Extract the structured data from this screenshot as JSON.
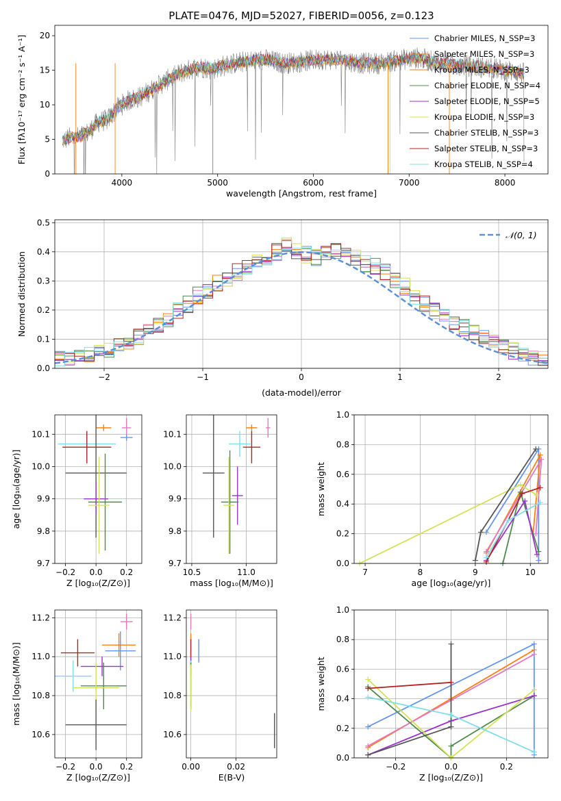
{
  "chart_data": [
    {
      "id": "spectrum",
      "type": "line",
      "title": "PLATE=0476, MJD=52027, FIBERID=0056, z=0.123",
      "xlabel": "wavelength [Angstrom, rest frame]",
      "ylabel": "Flux [fλ10⁻¹⁷ erg cm⁻² s⁻¹ A⁻¹]",
      "xlim": [
        3300,
        8450
      ],
      "ylim": [
        0,
        21.5
      ],
      "xticks": [
        4000,
        5000,
        6000,
        7000,
        8000
      ],
      "yticks": [
        0,
        5,
        10,
        15,
        20
      ],
      "legend_position": "upper-right",
      "data_envelope": {
        "x": [
          3380,
          3450,
          3550,
          3650,
          3750,
          3850,
          3950,
          4050,
          4200,
          4350,
          4500,
          4650,
          4800,
          4950,
          5100,
          5300,
          5500,
          5700,
          5900,
          6100,
          6300,
          6500,
          6700,
          6900,
          7100,
          7300,
          7500,
          7700,
          7900,
          8100,
          8200
        ],
        "y": [
          4.8,
          5.2,
          5.3,
          6.0,
          7.5,
          7.8,
          9.5,
          10.5,
          11.2,
          12.5,
          13.8,
          14.8,
          15.5,
          15.2,
          15.8,
          16.3,
          16.5,
          16.0,
          16.3,
          16.6,
          16.5,
          16.0,
          16.0,
          16.5,
          16.8,
          16.0,
          15.8,
          15.5,
          15.2,
          14.8,
          14.5
        ]
      },
      "series": [
        {
          "name": "Chabrier MILES, N_SSP=3",
          "color": "#6495ed"
        },
        {
          "name": "Salpeter MILES, N_SSP=3",
          "color": "#ff7f0e"
        },
        {
          "name": "Kroupa MILES, N_SSP=3",
          "color": "#e67e22"
        },
        {
          "name": "Chabrier ELODIE, N_SSP=4",
          "color": "#4e8a4e"
        },
        {
          "name": "Salpeter ELODIE, N_SSP=5",
          "color": "#9932cc"
        },
        {
          "name": "Kroupa ELODIE, N_SSP=3",
          "color": "#d4e157"
        },
        {
          "name": "Chabrier STELIB, N_SSP=3",
          "color": "#555555"
        },
        {
          "name": "Salpeter STELIB, N_SSP=3",
          "color": "#b22222"
        },
        {
          "name": "Kroupa STELIB, N_SSP=4",
          "color": "#80deea"
        }
      ]
    },
    {
      "id": "residuals",
      "type": "line",
      "xlabel": "(data-model)/error",
      "ylabel": "Normed distribution",
      "xlim": [
        -2.5,
        2.5
      ],
      "ylim": [
        0,
        0.51
      ],
      "xticks": [
        -2,
        -1,
        0,
        1,
        2
      ],
      "yticks": [
        0.0,
        0.1,
        0.2,
        0.3,
        0.4,
        0.5
      ],
      "grid": true,
      "legend": [
        "𝒩(0, 1)"
      ],
      "legend_position": "upper-right",
      "histogram": {
        "bin_start": -2.5,
        "bin_width": 0.1,
        "envelope": [
          0.03,
          0.035,
          0.04,
          0.045,
          0.055,
          0.065,
          0.08,
          0.095,
          0.11,
          0.13,
          0.15,
          0.17,
          0.2,
          0.22,
          0.25,
          0.27,
          0.29,
          0.31,
          0.33,
          0.35,
          0.37,
          0.38,
          0.4,
          0.42,
          0.4,
          0.39,
          0.38,
          0.39,
          0.4,
          0.41,
          0.38,
          0.36,
          0.35,
          0.33,
          0.3,
          0.28,
          0.25,
          0.22,
          0.2,
          0.18,
          0.15,
          0.14,
          0.12,
          0.11,
          0.09,
          0.075,
          0.06,
          0.05,
          0.04,
          0.03
        ]
      },
      "series": [
        {
          "name": "𝒩(0, 1)",
          "type": "gaussian",
          "mean": 0,
          "sigma": 1,
          "color": "#5b8fd6"
        }
      ]
    },
    {
      "id": "age-vs-Z",
      "type": "scatter",
      "xlabel": "Z [log₁₀(Z/Z⊙)]",
      "ylabel": "age  [log₁₀(age/yr)]",
      "xlim": [
        -0.27,
        0.3
      ],
      "ylim": [
        9.7,
        10.16
      ],
      "xticks": [
        -0.2,
        0.0,
        0.2
      ],
      "yticks": [
        9.7,
        9.8,
        9.9,
        10.0,
        10.1
      ],
      "grid": true,
      "points": [
        {
          "x": 0.05,
          "y": 10.12,
          "xerr": 0.05,
          "yerr": 0.01,
          "color": "#ff7f0e"
        },
        {
          "x": 0.2,
          "y": 10.12,
          "xerr": 0.03,
          "yerr": 0.03,
          "color": "#e377c2"
        },
        {
          "x": 0.2,
          "y": 10.09,
          "xerr": 0.04,
          "yerr": 0.01,
          "color": "#6495ed"
        },
        {
          "x": -0.06,
          "y": 10.07,
          "xerr": 0.19,
          "yerr": 0.04,
          "color": "#80deea"
        },
        {
          "x": -0.06,
          "y": 10.06,
          "xerr": 0.16,
          "yerr": 0.05,
          "color": "#b22222"
        },
        {
          "x": 0.0,
          "y": 9.98,
          "xerr": 0.2,
          "yerr": 0.2,
          "color": "#555555"
        },
        {
          "x": 0.0,
          "y": 9.9,
          "xerr": 0.08,
          "yerr": 0.05,
          "color": "#9932cc"
        },
        {
          "x": 0.06,
          "y": 9.89,
          "xerr": 0.11,
          "yerr": 0.15,
          "color": "#4e8a4e"
        },
        {
          "x": 0.02,
          "y": 9.88,
          "xerr": 0.07,
          "yerr": 0.15,
          "color": "#d4e157"
        }
      ]
    },
    {
      "id": "age-vs-mass",
      "type": "scatter",
      "xlabel": "mass [log₁₀(M/M⊙)]",
      "ylabel": "",
      "xlim": [
        10.45,
        11.28
      ],
      "ylim": [
        9.7,
        10.16
      ],
      "xticks": [
        10.5,
        11.0
      ],
      "yticks": [
        9.7,
        9.8,
        9.9,
        10.0,
        10.1
      ],
      "grid": true,
      "points": [
        {
          "x": 11.05,
          "y": 10.12,
          "xerr": 0.05,
          "yerr": 0.01,
          "color": "#ff7f0e"
        },
        {
          "x": 11.2,
          "y": 10.12,
          "xerr": 0.02,
          "yerr": 0.03,
          "color": "#e377c2"
        },
        {
          "x": 10.94,
          "y": 10.07,
          "xerr": 0.1,
          "yerr": 0.04,
          "color": "#80deea"
        },
        {
          "x": 11.05,
          "y": 10.06,
          "xerr": 0.08,
          "yerr": 0.05,
          "color": "#b22222"
        },
        {
          "x": 10.7,
          "y": 9.98,
          "xerr": 0.1,
          "yerr": 0.2,
          "color": "#555555"
        },
        {
          "x": 10.92,
          "y": 9.91,
          "xerr": 0.05,
          "yerr": 0.09,
          "color": "#9932cc"
        },
        {
          "x": 10.85,
          "y": 9.89,
          "xerr": 0.08,
          "yerr": 0.16,
          "color": "#4e8a4e"
        },
        {
          "x": 10.84,
          "y": 9.88,
          "xerr": 0.05,
          "yerr": 0.15,
          "color": "#d4e157"
        }
      ]
    },
    {
      "id": "weight-vs-age",
      "type": "line",
      "xlabel": "age  [log₁₀(age/yr)]",
      "ylabel": "mass weight",
      "xlim": [
        6.8,
        10.32
      ],
      "ylim": [
        0.0,
        1.0
      ],
      "xticks": [
        7,
        8,
        9,
        10
      ],
      "yticks": [
        0.0,
        0.2,
        0.4,
        0.6,
        0.8,
        1.0
      ],
      "grid": true,
      "series": [
        {
          "color": "#6495ed",
          "x": [
            9.2,
            10.15,
            10.15
          ],
          "y": [
            0.21,
            0.77,
            0.02
          ]
        },
        {
          "color": "#ff7f0e",
          "x": [
            9.2,
            10.18,
            10.05
          ],
          "y": [
            0.07,
            0.73,
            0.2
          ]
        },
        {
          "color": "#e377c2",
          "x": [
            9.2,
            10.2,
            10.1
          ],
          "y": [
            0.08,
            0.7,
            0.2
          ]
        },
        {
          "color": "#4e8a4e",
          "x": [
            9.5,
            9.82,
            10.15
          ],
          "y": [
            0.0,
            0.48,
            0.08
          ]
        },
        {
          "color": "#9932cc",
          "x": [
            9.2,
            9.9,
            10.12
          ],
          "y": [
            0.02,
            0.42,
            0.06
          ]
        },
        {
          "color": "#d4e157",
          "x": [
            6.9,
            9.82,
            10.12
          ],
          "y": [
            0.0,
            0.53,
            0.46
          ]
        },
        {
          "color": "#555555",
          "x": [
            9.0,
            9.1,
            10.1
          ],
          "y": [
            0.02,
            0.21,
            0.77
          ]
        },
        {
          "color": "#b22222",
          "x": [
            9.2,
            9.85,
            10.18
          ],
          "y": [
            0.01,
            0.47,
            0.51
          ]
        },
        {
          "color": "#80deea",
          "x": [
            9.2,
            9.6,
            10.18
          ],
          "y": [
            0.04,
            0.29,
            0.41
          ]
        }
      ]
    },
    {
      "id": "mass-vs-Z",
      "type": "scatter",
      "xlabel": "Z [log₁₀(Z/Z⊙)]",
      "ylabel": "mass [log₁₀(M/M⊙)]",
      "xlim": [
        -0.27,
        0.3
      ],
      "ylim": [
        10.48,
        11.24
      ],
      "xticks": [
        -0.2,
        0.0,
        0.2
      ],
      "yticks": [
        10.6,
        10.8,
        11.0,
        11.2
      ],
      "grid": true,
      "points": [
        {
          "x": 0.2,
          "y": 11.18,
          "xerr": 0.04,
          "yerr": 0.04,
          "color": "#e377c2"
        },
        {
          "x": 0.15,
          "y": 11.06,
          "xerr": 0.11,
          "yerr": 0.06,
          "color": "#ff7f0e"
        },
        {
          "x": 0.16,
          "y": 11.03,
          "xerr": 0.1,
          "yerr": 0.1,
          "color": "#6495ed"
        },
        {
          "x": -0.12,
          "y": 11.02,
          "xerr": 0.11,
          "yerr": 0.07,
          "color": "#b22222"
        },
        {
          "x": 0.04,
          "y": 10.95,
          "xerr": 0.14,
          "yerr": 0.05,
          "color": "#9932cc"
        },
        {
          "x": -0.15,
          "y": 10.9,
          "xerr": 0.12,
          "yerr": 0.08,
          "color": "#80deea"
        },
        {
          "x": 0.05,
          "y": 10.85,
          "xerr": 0.15,
          "yerr": 0.12,
          "color": "#4e8a4e"
        },
        {
          "x": 0.0,
          "y": 10.84,
          "xerr": 0.15,
          "yerr": 0.12,
          "color": "#d4e157"
        },
        {
          "x": 0.0,
          "y": 10.65,
          "xerr": 0.2,
          "yerr": 0.13,
          "color": "#555555"
        }
      ]
    },
    {
      "id": "mass-vs-ebv",
      "type": "scatter",
      "xlabel": "E(B-V)",
      "ylabel": "",
      "xlim": [
        -0.002,
        0.038
      ],
      "ylim": [
        10.48,
        11.24
      ],
      "xticks": [
        0.0,
        0.02
      ],
      "yticks": [
        10.6,
        10.8,
        11.0,
        11.2
      ],
      "grid": true,
      "points": [
        {
          "x": 0.0,
          "y": 11.18,
          "xerr": 0,
          "yerr": 0.04,
          "color": "#e377c2"
        },
        {
          "x": 0.0,
          "y": 11.06,
          "xerr": 0,
          "yerr": 0.06,
          "color": "#ff7f0e"
        },
        {
          "x": 0.0,
          "y": 11.02,
          "xerr": 0,
          "yerr": 0.07,
          "color": "#b22222"
        },
        {
          "x": 0.0035,
          "y": 11.03,
          "xerr": 0,
          "yerr": 0.06,
          "color": "#6495ed"
        },
        {
          "x": 0.0,
          "y": 10.95,
          "xerr": 0,
          "yerr": 0.05,
          "color": "#9932cc"
        },
        {
          "x": 0.0,
          "y": 10.9,
          "xerr": 0,
          "yerr": 0.08,
          "color": "#80deea"
        },
        {
          "x": 0.0,
          "y": 10.85,
          "xerr": 0,
          "yerr": 0.12,
          "color": "#4e8a4e"
        },
        {
          "x": 0.0,
          "y": 10.84,
          "xerr": 0,
          "yerr": 0.12,
          "color": "#d4e157"
        },
        {
          "x": 0.037,
          "y": 10.62,
          "xerr": 0,
          "yerr": 0.09,
          "color": "#555555"
        }
      ]
    },
    {
      "id": "weight-vs-Z",
      "type": "line",
      "xlabel": "Z [log₁₀(Z/Z⊙)]",
      "ylabel": "mass weight",
      "xlim": [
        -0.35,
        0.35
      ],
      "ylim": [
        0.0,
        1.0
      ],
      "xticks": [
        -0.2,
        0.0,
        0.2
      ],
      "yticks": [
        0.0,
        0.2,
        0.4,
        0.6,
        0.8,
        1.0
      ],
      "grid": true,
      "series": [
        {
          "color": "#6495ed",
          "x": [
            -0.3,
            0.3,
            0.3
          ],
          "y": [
            0.21,
            0.77,
            0.02
          ]
        },
        {
          "color": "#ff7f0e",
          "x": [
            -0.3,
            0.0,
            0.3
          ],
          "y": [
            0.07,
            0.4,
            0.73
          ]
        },
        {
          "color": "#e377c2",
          "x": [
            -0.3,
            0.0,
            0.3
          ],
          "y": [
            0.08,
            0.39,
            0.7
          ]
        },
        {
          "color": "#4e8a4e",
          "x": [
            -0.3,
            0.0,
            0.0,
            0.3
          ],
          "y": [
            0.48,
            0.0,
            0.08,
            0.42
          ]
        },
        {
          "color": "#9932cc",
          "x": [
            -0.3,
            0.0,
            0.3
          ],
          "y": [
            0.02,
            0.25,
            0.42
          ]
        },
        {
          "color": "#d4e157",
          "x": [
            -0.3,
            0.0,
            0.3
          ],
          "y": [
            0.53,
            0.0,
            0.46
          ]
        },
        {
          "color": "#555555",
          "x": [
            -0.3,
            0.0,
            0.0
          ],
          "y": [
            0.02,
            0.21,
            0.77
          ]
        },
        {
          "color": "#b22222",
          "x": [
            -0.3,
            0.0
          ],
          "y": [
            0.47,
            0.51
          ]
        },
        {
          "color": "#80deea",
          "x": [
            -0.3,
            0.0,
            0.3
          ],
          "y": [
            0.41,
            0.29,
            0.04
          ]
        }
      ]
    }
  ]
}
